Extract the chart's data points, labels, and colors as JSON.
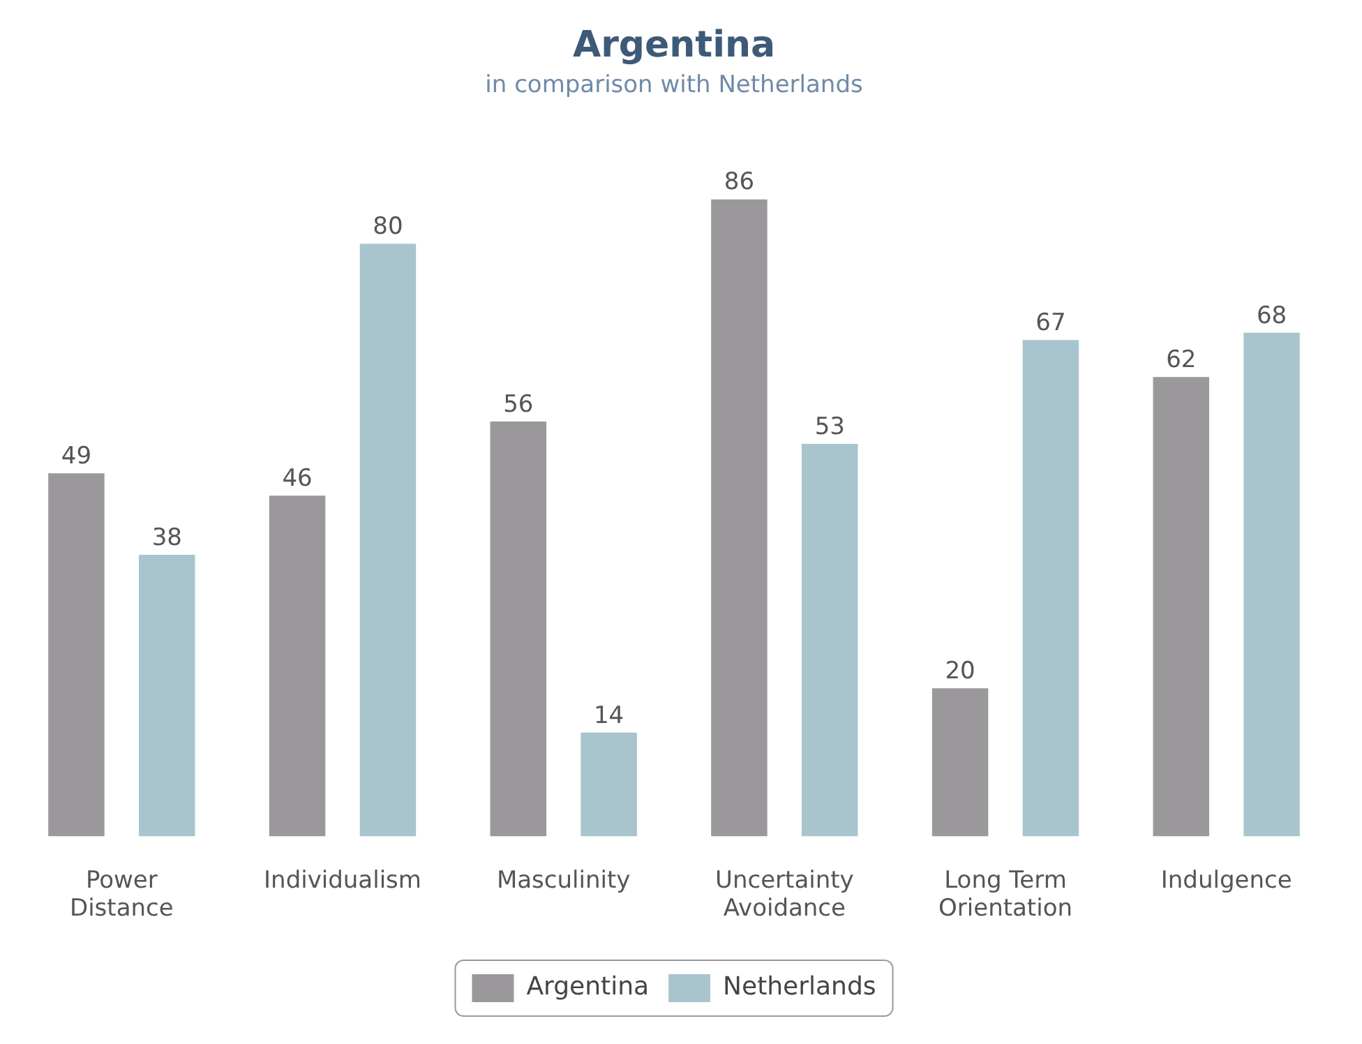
{
  "chart_data": {
    "type": "bar",
    "title": "Argentina",
    "subtitle": "in comparison with Netherlands",
    "categories": [
      "Power Distance",
      "Individualism",
      "Masculinity",
      "Uncertainty Avoidance",
      "Long Term Orientation",
      "Indulgence"
    ],
    "series": [
      {
        "name": "Argentina",
        "color": "#9a989b",
        "values": [
          49,
          46,
          56,
          86,
          20,
          62
        ]
      },
      {
        "name": "Netherlands",
        "color": "#a8c5cd",
        "values": [
          38,
          80,
          14,
          53,
          67,
          68
        ]
      }
    ],
    "data_labels": true,
    "legend": "bottom",
    "grid": false
  }
}
